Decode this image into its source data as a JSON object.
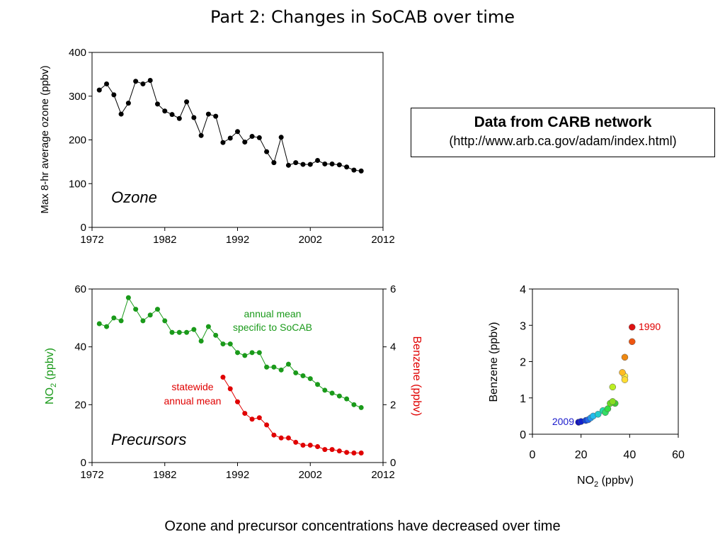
{
  "title": "Part 2: Changes in SoCAB over time",
  "source": {
    "title": "Data from CARB network",
    "url": "(http://www.arb.ca.gov/adam/index.html)"
  },
  "caption": "Ozone and precursor concentrations have decreased over time",
  "chart_data": [
    {
      "type": "line",
      "ylabel": "Max 8-hr average ozone (ppbv)",
      "annotation": "Ozone",
      "xlim": [
        1972,
        2012
      ],
      "ylim": [
        0,
        400
      ],
      "xticks": [
        1972,
        1982,
        1992,
        2002,
        2012
      ],
      "yticks": [
        0,
        100,
        200,
        300,
        400
      ],
      "color": "#000000",
      "x": [
        1973,
        1974,
        1975,
        1976,
        1977,
        1978,
        1979,
        1980,
        1981,
        1982,
        1983,
        1984,
        1985,
        1986,
        1987,
        1988,
        1989,
        1990,
        1991,
        1992,
        1993,
        1994,
        1995,
        1996,
        1997,
        1998,
        1999,
        2000,
        2001,
        2002,
        2003,
        2004,
        2005,
        2006,
        2007,
        2008,
        2009
      ],
      "y": [
        314,
        328,
        303,
        259,
        284,
        334,
        328,
        336,
        282,
        266,
        258,
        249,
        287,
        251,
        210,
        259,
        254,
        194,
        204,
        219,
        195,
        208,
        205,
        173,
        148,
        206,
        142,
        148,
        144,
        144,
        153,
        145,
        145,
        143,
        138,
        131,
        129
      ]
    },
    {
      "type": "line",
      "annotation": "Precursors",
      "xlim": [
        1972,
        2012
      ],
      "xticks": [
        1972,
        1982,
        1992,
        2002,
        2012
      ],
      "left_axis": {
        "ylabel_main": "NO",
        "ylabel_sub": "2",
        "ylabel_tail": " (ppbv)",
        "ylim": [
          0,
          60
        ],
        "yticks": [
          0,
          20,
          40,
          60
        ],
        "color": "#1a9a1a"
      },
      "right_axis": {
        "ylabel": "Benzene (ppbv)",
        "ylim": [
          0,
          6
        ],
        "yticks": [
          0,
          2,
          4,
          6
        ],
        "color": "#e00000"
      },
      "series": [
        {
          "axis": "left",
          "color": "#1a9a1a",
          "label_lines": [
            "annual mean",
            "specific to SoCAB"
          ],
          "x": [
            1973,
            1974,
            1975,
            1976,
            1977,
            1978,
            1979,
            1980,
            1981,
            1982,
            1983,
            1984,
            1985,
            1986,
            1987,
            1988,
            1989,
            1990,
            1991,
            1992,
            1993,
            1994,
            1995,
            1996,
            1997,
            1998,
            1999,
            2000,
            2001,
            2002,
            2003,
            2004,
            2005,
            2006,
            2007,
            2008,
            2009
          ],
          "y": [
            48,
            47,
            50,
            49,
            57,
            53,
            49,
            51,
            53,
            49,
            45,
            45,
            45,
            46,
            42,
            47,
            44,
            41,
            41,
            38,
            37,
            38,
            38,
            33,
            33,
            32,
            34,
            31,
            30,
            29,
            27,
            25,
            24,
            23,
            22,
            20,
            19
          ]
        },
        {
          "axis": "right",
          "color": "#e00000",
          "label_lines": [
            "statewide",
            "annual mean"
          ],
          "x": [
            1990,
            1991,
            1992,
            1993,
            1994,
            1995,
            1996,
            1997,
            1998,
            1999,
            2000,
            2001,
            2002,
            2003,
            2004,
            2005,
            2006,
            2007,
            2008,
            2009
          ],
          "y": [
            2.95,
            2.55,
            2.1,
            1.7,
            1.5,
            1.55,
            1.3,
            0.95,
            0.85,
            0.85,
            0.7,
            0.6,
            0.6,
            0.55,
            0.45,
            0.45,
            0.4,
            0.35,
            0.33,
            0.33
          ]
        }
      ]
    },
    {
      "type": "scatter",
      "xlabel_main": "NO",
      "xlabel_sub": "2",
      "xlabel_tail": " (ppbv)",
      "ylabel": "Benzene (ppbv)",
      "xlim": [
        0,
        60
      ],
      "ylim": [
        0,
        4
      ],
      "xticks": [
        0,
        20,
        40,
        60
      ],
      "yticks": [
        0,
        1,
        2,
        3,
        4
      ],
      "start_label": {
        "text": "1990",
        "color": "#e00000"
      },
      "end_label": {
        "text": "2009",
        "color": "#1a1acc"
      },
      "points": [
        {
          "x": 41,
          "y": 2.95,
          "color": "#dd1111"
        },
        {
          "x": 41,
          "y": 2.55,
          "color": "#ee5511"
        },
        {
          "x": 38,
          "y": 2.12,
          "color": "#ee8811"
        },
        {
          "x": 37,
          "y": 1.7,
          "color": "#ffbb22"
        },
        {
          "x": 38,
          "y": 1.5,
          "color": "#ffdd33"
        },
        {
          "x": 38,
          "y": 1.6,
          "color": "#ffee44"
        },
        {
          "x": 33,
          "y": 1.3,
          "color": "#bbee22"
        },
        {
          "x": 33,
          "y": 0.9,
          "color": "#88dd22"
        },
        {
          "x": 32,
          "y": 0.85,
          "color": "#66dd22"
        },
        {
          "x": 34,
          "y": 0.85,
          "color": "#44cc33"
        },
        {
          "x": 31,
          "y": 0.7,
          "color": "#33dd44"
        },
        {
          "x": 30,
          "y": 0.6,
          "color": "#33dd66"
        },
        {
          "x": 29,
          "y": 0.65,
          "color": "#22ddaa"
        },
        {
          "x": 27,
          "y": 0.55,
          "color": "#22cccc"
        },
        {
          "x": 25,
          "y": 0.5,
          "color": "#22bbee"
        },
        {
          "x": 24,
          "y": 0.45,
          "color": "#2299ee"
        },
        {
          "x": 23,
          "y": 0.4,
          "color": "#2266ee"
        },
        {
          "x": 22,
          "y": 0.38,
          "color": "#1144dd"
        },
        {
          "x": 20,
          "y": 0.35,
          "color": "#1122cc"
        },
        {
          "x": 19,
          "y": 0.33,
          "color": "#1111bb"
        }
      ]
    }
  ]
}
